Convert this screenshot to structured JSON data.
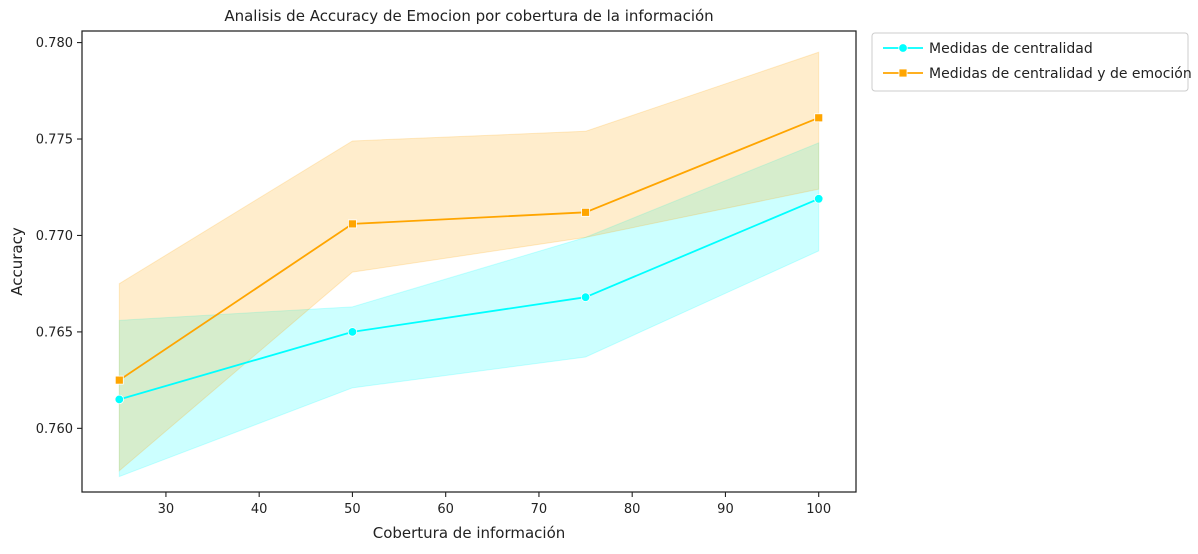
{
  "chart_data": {
    "type": "line",
    "title": "Analisis de Accuracy de Emocion por cobertura de la información",
    "xlabel": "Cobertura de información",
    "ylabel": "Accuracy",
    "xlim": [
      21,
      104
    ],
    "ylim": [
      0.7567,
      0.7806
    ],
    "xticks": [
      30,
      40,
      50,
      60,
      70,
      80,
      90,
      100
    ],
    "yticks": [
      0.76,
      0.765,
      0.77,
      0.775,
      0.78
    ],
    "ytick_labels": [
      "0.760",
      "0.765",
      "0.770",
      "0.775",
      "0.780"
    ],
    "grid": false,
    "legend_position": "outside-top-right",
    "x": [
      25,
      50,
      75,
      100
    ],
    "series": [
      {
        "name": "Medidas de centralidad",
        "color": "#00FFFF",
        "marker": "circle",
        "values": [
          0.7615,
          0.765,
          0.7668,
          0.7719
        ],
        "band_lower": [
          0.7575,
          0.7621,
          0.7637,
          0.7692
        ],
        "band_upper": [
          0.7656,
          0.7663,
          0.7699,
          0.7748
        ]
      },
      {
        "name": "Medidas de centralidad y de emoción",
        "color": "#FFA500",
        "marker": "square",
        "values": [
          0.7625,
          0.7706,
          0.7712,
          0.7761
        ],
        "band_lower": [
          0.7578,
          0.7681,
          0.7699,
          0.7724
        ],
        "band_upper": [
          0.7675,
          0.7749,
          0.7754,
          0.7795
        ]
      }
    ]
  }
}
